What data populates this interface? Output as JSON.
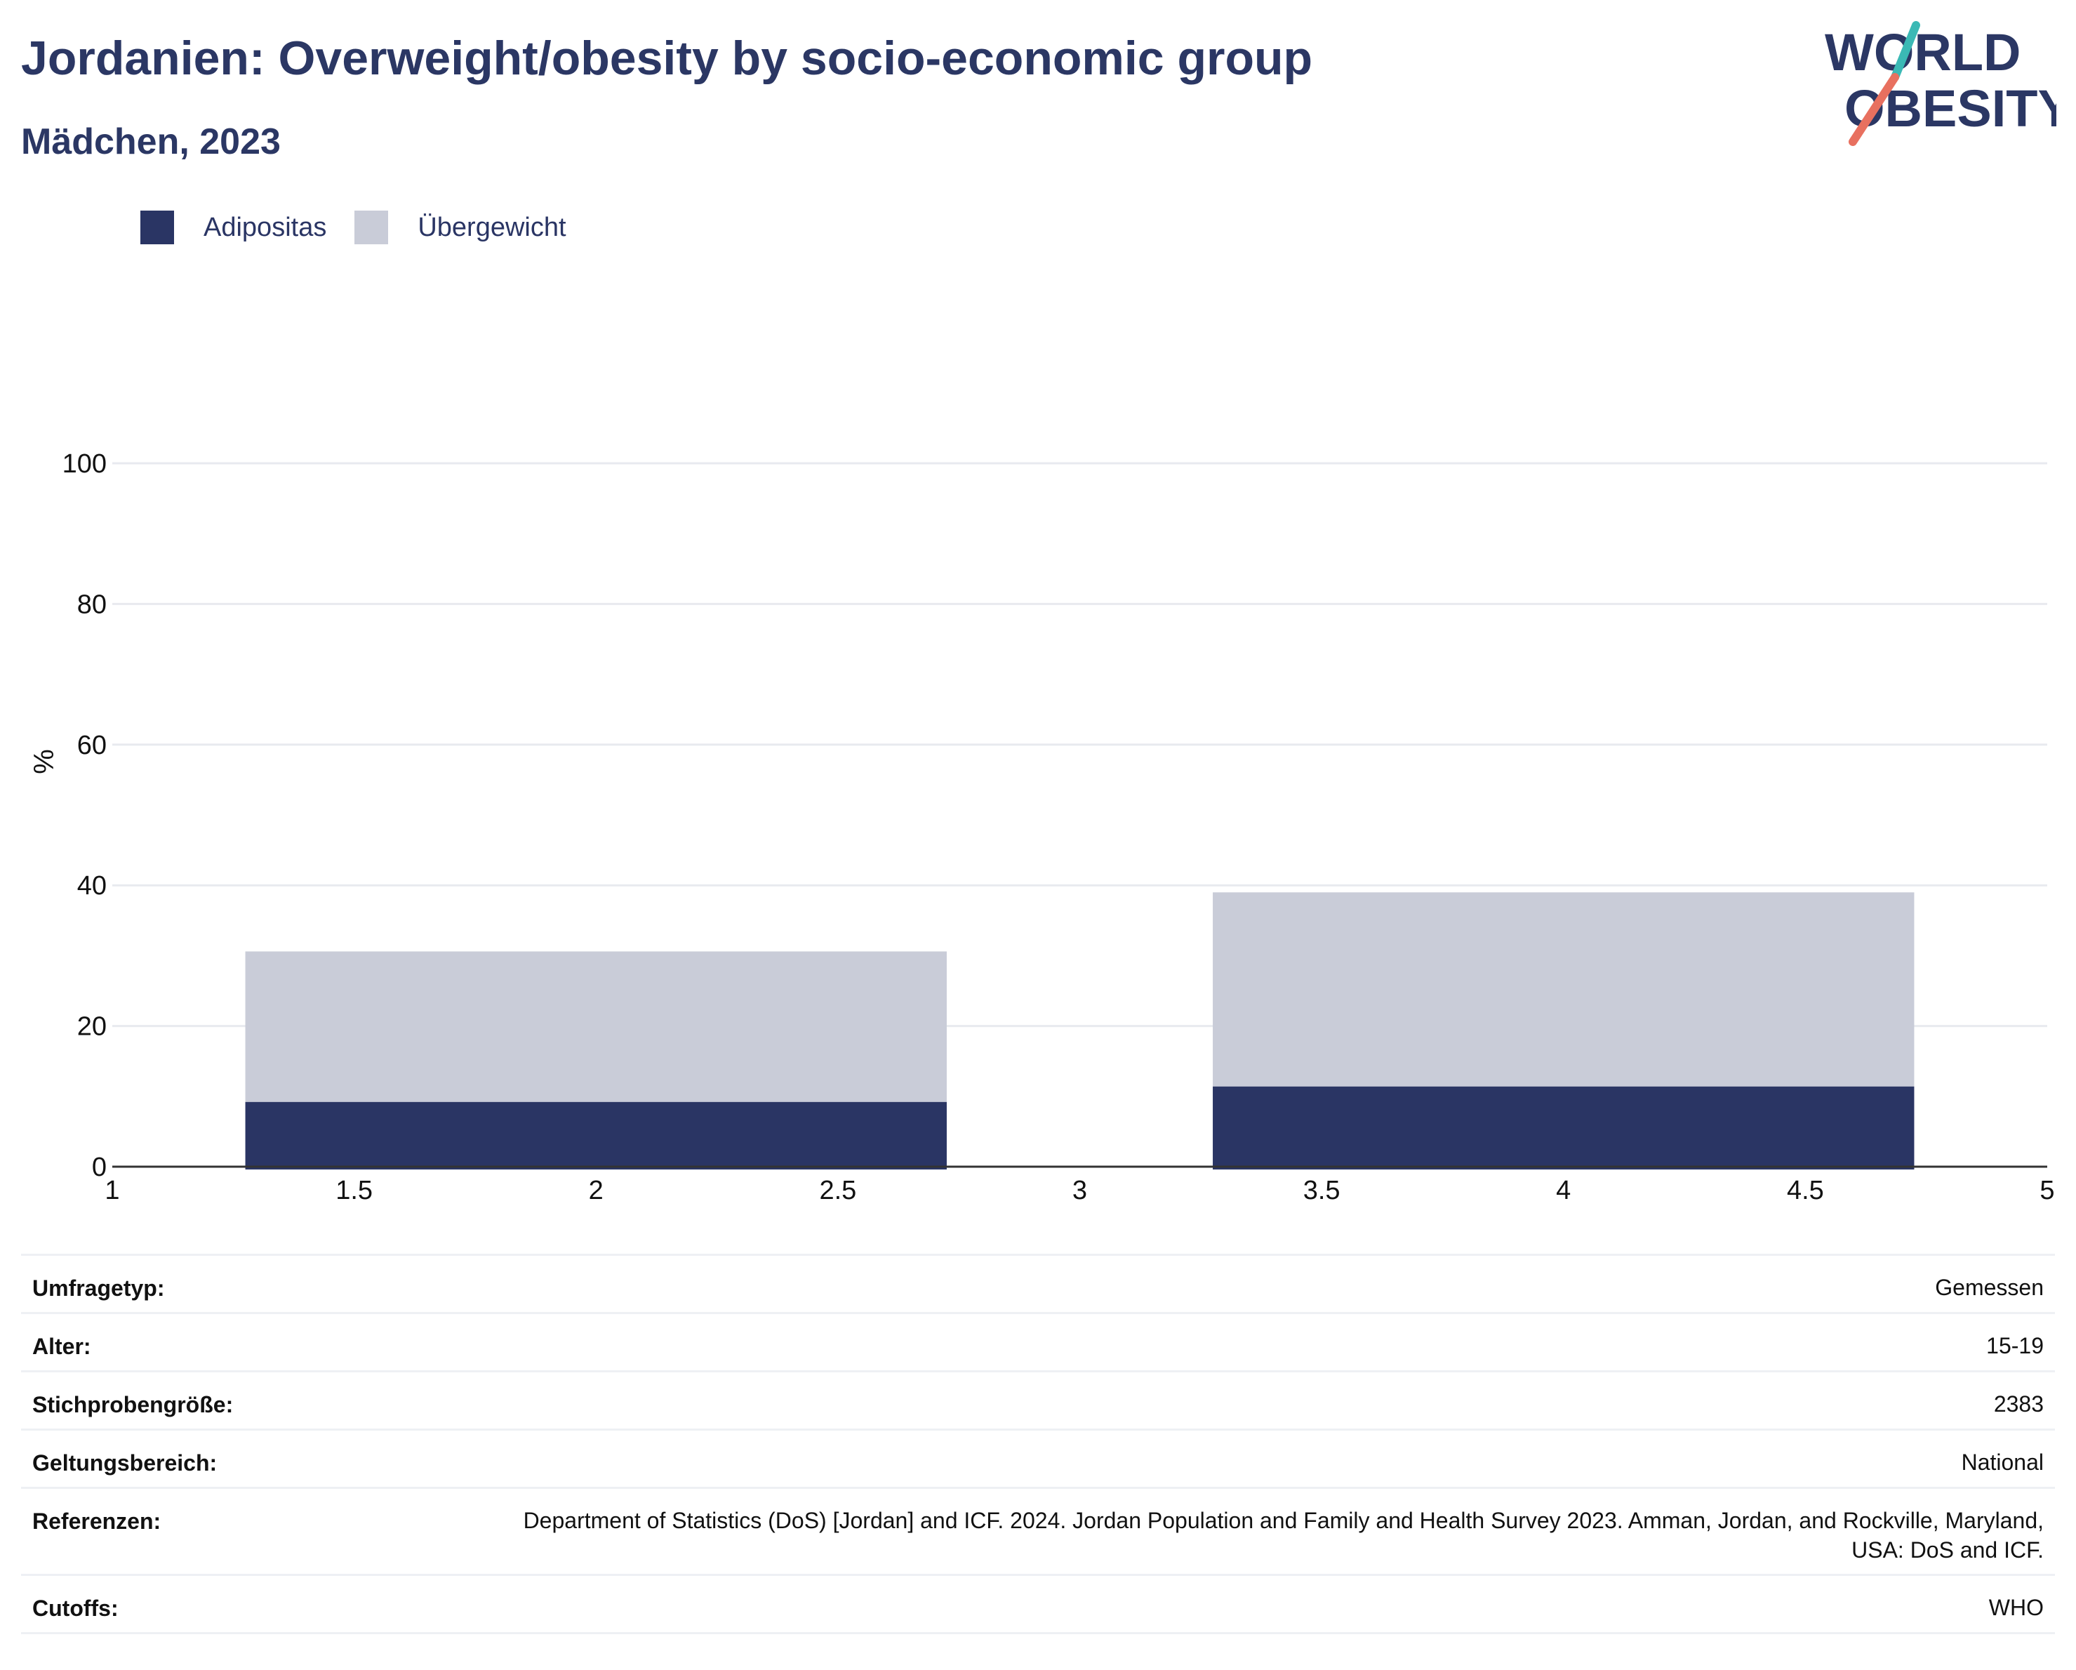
{
  "header": {
    "title": "Jordanien: Overweight/obesity by socio-economic group",
    "subtitle": "Mädchen, 2023"
  },
  "logo": {
    "line1": "WORLD",
    "line2": "OBESITY",
    "colors": {
      "text": "#2b3764",
      "slash_top": "#3bb9b5",
      "slash_bottom": "#e8705f"
    }
  },
  "legend": [
    {
      "label": "Adipositas",
      "color": "#2a3564"
    },
    {
      "label": "Übergewicht",
      "color": "#c9ccd8"
    }
  ],
  "chart_data": {
    "type": "bar",
    "stacked": true,
    "ylabel": "%",
    "xlim": [
      1,
      5
    ],
    "ylim": [
      0,
      100
    ],
    "x_ticks": [
      "1",
      "1.5",
      "2",
      "2.5",
      "3",
      "3.5",
      "4",
      "4.5",
      "5"
    ],
    "y_ticks": [
      "0",
      "20",
      "40",
      "60",
      "80",
      "100"
    ],
    "grid": true,
    "legend_position": "top-left",
    "bars": [
      {
        "x_start": 1.275,
        "x_end": 2.725,
        "adipositas": 9.2,
        "uebergewicht": 21.4
      },
      {
        "x_start": 3.275,
        "x_end": 4.725,
        "adipositas": 11.4,
        "uebergewicht": 27.6
      }
    ],
    "series": [
      {
        "name": "Adipositas",
        "color": "#2a3564"
      },
      {
        "name": "Übergewicht",
        "color": "#c9ccd8"
      }
    ]
  },
  "info": {
    "survey_type": {
      "label": "Umfragetyp:",
      "value": "Gemessen"
    },
    "age": {
      "label": "Alter:",
      "value": "15-19"
    },
    "sample_size": {
      "label": "Stichprobengröße:",
      "value": "2383"
    },
    "coverage": {
      "label": "Geltungsbereich:",
      "value": "National"
    },
    "references": {
      "label": "Referenzen:",
      "value": "Department of Statistics (DoS) [Jordan] and ICF. 2024. Jordan Population and Family and Health Survey 2023. Amman, Jordan, and Rockville, Maryland, USA: DoS and ICF."
    },
    "cutoffs": {
      "label": "Cutoffs:",
      "value": "WHO"
    }
  }
}
